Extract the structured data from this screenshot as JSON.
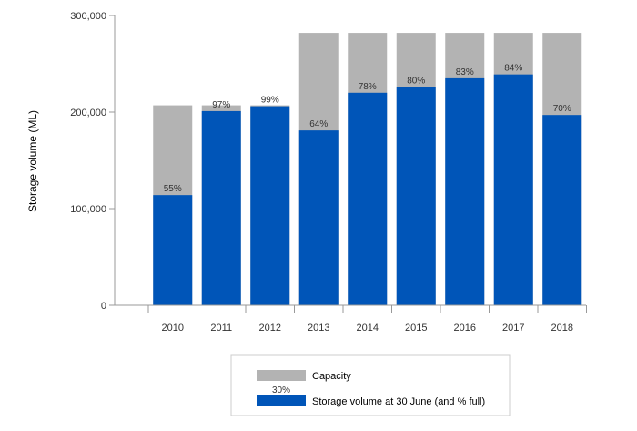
{
  "chart_data": {
    "type": "bar",
    "stacked_overlay": true,
    "title": "",
    "xlabel": "",
    "ylabel": "Storage volume (ML)",
    "ylim": [
      0,
      300000
    ],
    "yticks": [
      0,
      100000,
      200000,
      300000
    ],
    "ytick_labels": [
      "0",
      "100,000",
      "200,000",
      "300,000"
    ],
    "categories": [
      "2010",
      "2011",
      "2012",
      "2013",
      "2014",
      "2015",
      "2016",
      "2017",
      "2018"
    ],
    "series": [
      {
        "name": "Capacity",
        "color": "#b3b3b3",
        "values": [
          207000,
          207000,
          207000,
          282000,
          282000,
          282000,
          282000,
          282000,
          282000
        ]
      },
      {
        "name": "Storage volume at 30 June (and % full)",
        "color": "#0055b8",
        "values": [
          114000,
          201000,
          206000,
          181000,
          220000,
          226000,
          235000,
          239000,
          197000
        ],
        "labels": [
          "55%",
          "97%",
          "99%",
          "64%",
          "78%",
          "80%",
          "83%",
          "84%",
          "70%"
        ]
      }
    ],
    "grid": false,
    "legend": {
      "position": "bottom-center",
      "sample_label": "30%"
    }
  }
}
